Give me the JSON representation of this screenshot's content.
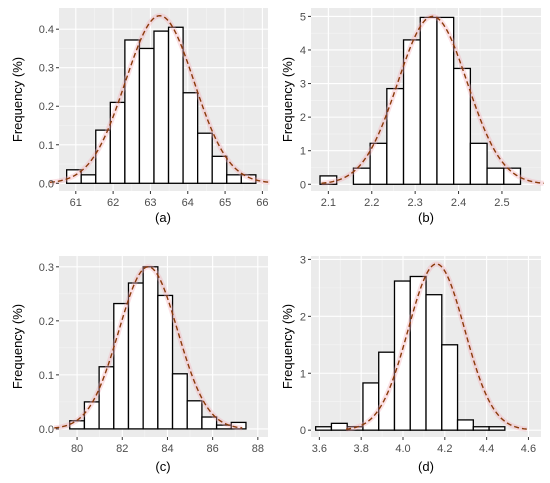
{
  "chart_data": [
    {
      "type": "histogram",
      "caption": "(a)",
      "xlabel": "",
      "ylabel": "Frequency (%)",
      "xlim": [
        60.55,
        66.15
      ],
      "ylim": [
        -0.02,
        0.455
      ],
      "x_ticks": [
        61,
        62,
        63,
        64,
        65,
        66
      ],
      "x_tick_labels": [
        "61",
        "62",
        "63",
        "64",
        "65",
        "66"
      ],
      "y_ticks": [
        0.0,
        0.1,
        0.2,
        0.3,
        0.4
      ],
      "y_tick_labels": [
        "0.0",
        "0.1",
        "0.2",
        "0.3",
        "0.4"
      ],
      "bin_width": 0.39,
      "bins": [
        {
          "x": 60.95,
          "value": 0.035
        },
        {
          "x": 61.34,
          "value": 0.022
        },
        {
          "x": 61.73,
          "value": 0.138
        },
        {
          "x": 62.12,
          "value": 0.21
        },
        {
          "x": 62.51,
          "value": 0.372
        },
        {
          "x": 62.9,
          "value": 0.35
        },
        {
          "x": 63.29,
          "value": 0.395
        },
        {
          "x": 63.68,
          "value": 0.405
        },
        {
          "x": 64.07,
          "value": 0.235
        },
        {
          "x": 64.46,
          "value": 0.13
        },
        {
          "x": 64.85,
          "value": 0.07
        },
        {
          "x": 65.24,
          "value": 0.022
        },
        {
          "x": 65.63,
          "value": 0.022
        }
      ],
      "density": {
        "mean": 63.25,
        "sd": 0.92,
        "peak": 0.435
      },
      "grid": true
    },
    {
      "type": "histogram",
      "caption": "(b)",
      "xlabel": "",
      "ylabel": "Frequency (%)",
      "xlim": [
        2.06,
        2.59
      ],
      "ylim": [
        -0.2,
        5.25
      ],
      "x_ticks": [
        2.1,
        2.2,
        2.3,
        2.4,
        2.5
      ],
      "x_tick_labels": [
        "2.1",
        "2.2",
        "2.3",
        "2.4",
        "2.5"
      ],
      "y_ticks": [
        0,
        1,
        2,
        3,
        4,
        5
      ],
      "y_tick_labels": [
        "0",
        "1",
        "2",
        "3",
        "4",
        "5"
      ],
      "bin_width": 0.0385,
      "bins": [
        {
          "x": 2.1,
          "value": 0.25
        },
        {
          "x": 2.1385,
          "value": 0.0
        },
        {
          "x": 2.177,
          "value": 0.48
        },
        {
          "x": 2.2155,
          "value": 1.22
        },
        {
          "x": 2.254,
          "value": 2.85
        },
        {
          "x": 2.2925,
          "value": 4.3
        },
        {
          "x": 2.331,
          "value": 4.97
        },
        {
          "x": 2.3695,
          "value": 4.97
        },
        {
          "x": 2.408,
          "value": 3.45
        },
        {
          "x": 2.4465,
          "value": 1.22
        },
        {
          "x": 2.485,
          "value": 0.48
        },
        {
          "x": 2.5235,
          "value": 0.48
        }
      ],
      "density": {
        "mean": 2.34,
        "sd": 0.08,
        "peak": 5.0
      },
      "grid": true
    },
    {
      "type": "histogram",
      "caption": "(c)",
      "xlabel": "",
      "ylabel": "Frequency (%)",
      "xlim": [
        79.2,
        88.45
      ],
      "ylim": [
        -0.015,
        0.32
      ],
      "x_ticks": [
        80,
        82,
        84,
        86,
        88
      ],
      "x_tick_labels": [
        "80",
        "82",
        "84",
        "86",
        "88"
      ],
      "y_ticks": [
        0.0,
        0.1,
        0.2,
        0.3
      ],
      "y_tick_labels": [
        "0.0",
        "0.1",
        "0.2",
        "0.3"
      ],
      "bin_width": 0.65,
      "bins": [
        {
          "x": 80.0,
          "value": 0.015
        },
        {
          "x": 80.65,
          "value": 0.05
        },
        {
          "x": 81.3,
          "value": 0.115
        },
        {
          "x": 81.95,
          "value": 0.232
        },
        {
          "x": 82.6,
          "value": 0.27
        },
        {
          "x": 83.25,
          "value": 0.3
        },
        {
          "x": 83.9,
          "value": 0.247
        },
        {
          "x": 84.55,
          "value": 0.102
        },
        {
          "x": 85.2,
          "value": 0.052
        },
        {
          "x": 85.85,
          "value": 0.022
        },
        {
          "x": 86.5,
          "value": 0.007
        },
        {
          "x": 87.15,
          "value": 0.012
        }
      ],
      "density": {
        "mean": 83.15,
        "sd": 1.3,
        "peak": 0.3
      },
      "grid": true
    },
    {
      "type": "histogram",
      "caption": "(d)",
      "xlabel": "",
      "ylabel": "Frequency (%)",
      "xlim": [
        3.56,
        4.66
      ],
      "ylim": [
        -0.12,
        3.06
      ],
      "x_ticks": [
        3.6,
        3.8,
        4.0,
        4.2,
        4.4,
        4.6
      ],
      "x_tick_labels": [
        "3.6",
        "3.8",
        "4.0",
        "4.2",
        "4.4",
        "4.6"
      ],
      "y_ticks": [
        0,
        1,
        2,
        3
      ],
      "y_tick_labels": [
        "0",
        "1",
        "2",
        "3"
      ],
      "bin_width": 0.0754,
      "bins": [
        {
          "x": 3.62,
          "value": 0.06
        },
        {
          "x": 3.6954,
          "value": 0.12
        },
        {
          "x": 3.7708,
          "value": 0.06
        },
        {
          "x": 3.8462,
          "value": 0.83
        },
        {
          "x": 3.9216,
          "value": 1.37
        },
        {
          "x": 3.997,
          "value": 2.62
        },
        {
          "x": 4.0724,
          "value": 2.7
        },
        {
          "x": 4.1478,
          "value": 2.38
        },
        {
          "x": 4.2232,
          "value": 1.5
        },
        {
          "x": 4.2986,
          "value": 0.18
        },
        {
          "x": 4.374,
          "value": 0.06
        },
        {
          "x": 4.4494,
          "value": 0.06
        }
      ],
      "density": {
        "mean": 4.16,
        "sd": 0.135,
        "peak": 2.92
      },
      "grid": true
    }
  ],
  "colors": {
    "panel_background": "#ebebeb",
    "bar_fill": "#ffffff",
    "bar_outline": "#000000",
    "density_line": "#8b3a0a",
    "density_glow": "#f4a9b4"
  }
}
